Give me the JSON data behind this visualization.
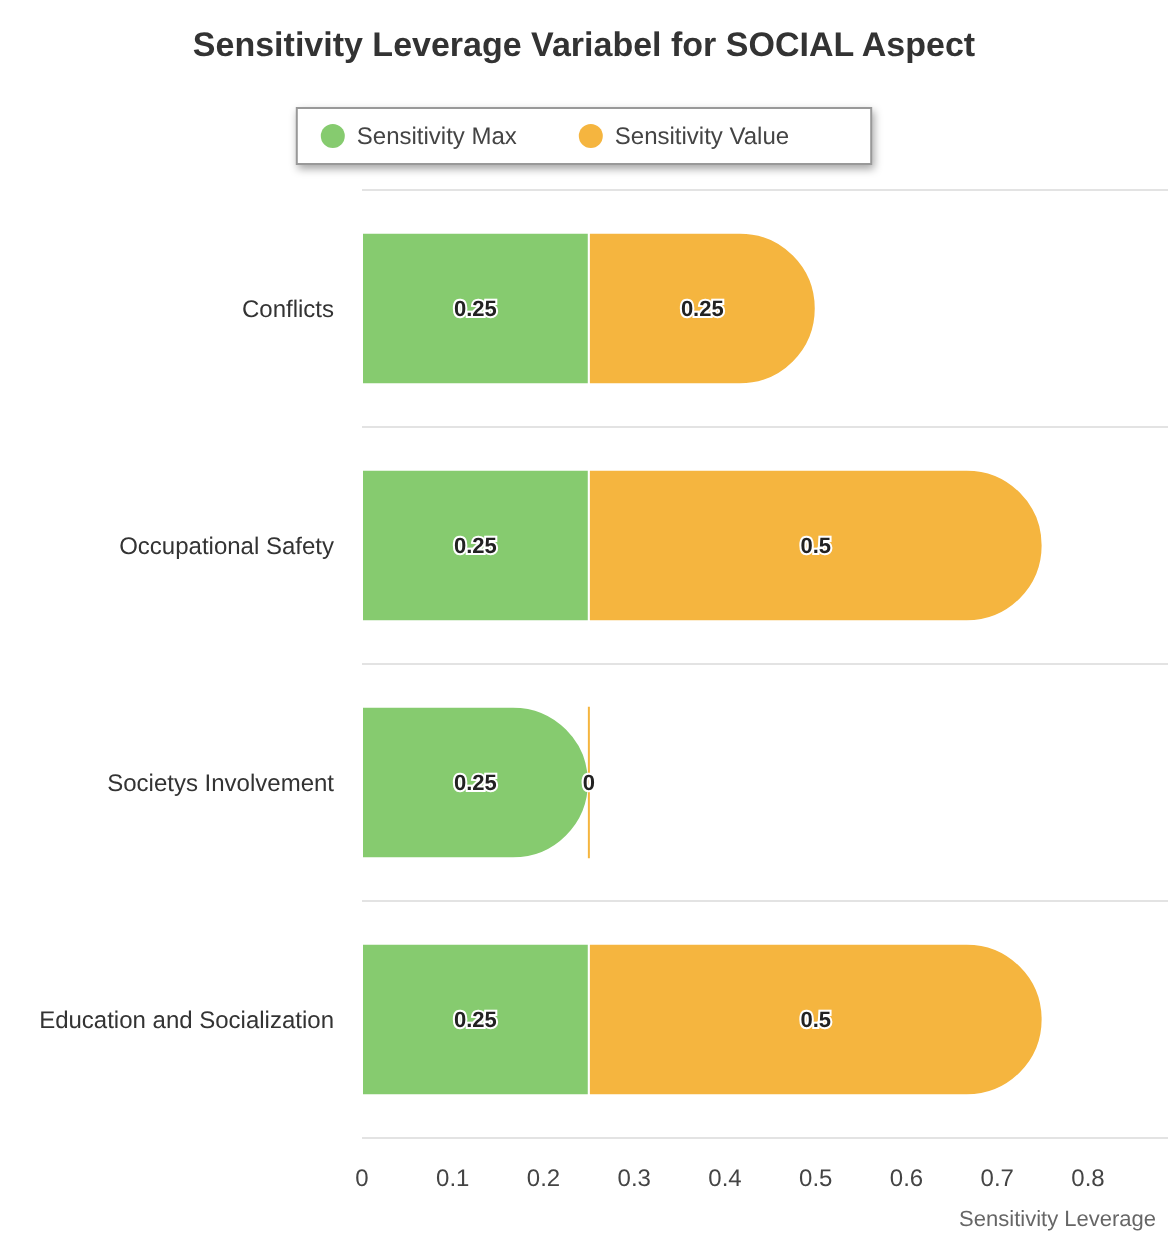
{
  "chart_data": {
    "type": "bar",
    "orientation": "horizontal",
    "stacked": true,
    "title": "Sensitivity Leverage Variabel for SOCIAL Aspect",
    "xlabel": "Sensitivity Leverage",
    "categories": [
      "Conflicts",
      "Occupational Safety",
      "Societys Involvement",
      "Education and Socialization"
    ],
    "series": [
      {
        "name": "Sensitivity Max",
        "color": "#86cb6f",
        "values": [
          0.25,
          0.25,
          0.25,
          0.25
        ]
      },
      {
        "name": "Sensitivity Value",
        "color": "#f5b53f",
        "values": [
          0.25,
          0.5,
          0,
          0.5
        ]
      }
    ],
    "xlim": [
      0,
      0.8
    ],
    "xticks": [
      0,
      0.1,
      0.2,
      0.3,
      0.4,
      0.5,
      0.6,
      0.7,
      0.8
    ],
    "grid": "y",
    "legend": "top",
    "data_labels": true
  }
}
